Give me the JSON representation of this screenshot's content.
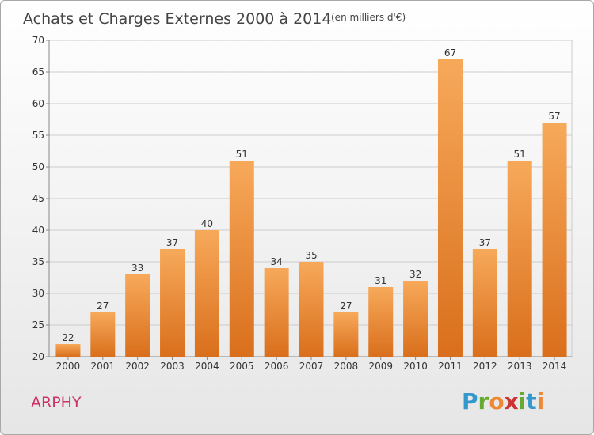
{
  "chart_data": {
    "type": "bar",
    "title": "Achats et Charges Externes 2000 à 2014",
    "subtitle": "(en milliers d'€)",
    "categories": [
      "2000",
      "2001",
      "2002",
      "2003",
      "2004",
      "2005",
      "2006",
      "2007",
      "2008",
      "2009",
      "2010",
      "2011",
      "2012",
      "2013",
      "2014"
    ],
    "values": [
      22,
      27,
      33,
      37,
      40,
      51,
      34,
      35,
      27,
      31,
      32,
      67,
      37,
      51,
      57
    ],
    "ylim": [
      20,
      70
    ],
    "yticks": [
      20,
      25,
      30,
      35,
      40,
      45,
      50,
      55,
      60,
      65,
      70
    ],
    "grid": true,
    "bar_color": "#f0913a"
  },
  "footer": {
    "commune": "ARPHY",
    "logo_letters": [
      "P",
      "r",
      "o",
      "x",
      "i",
      "t",
      "i"
    ],
    "logo_colors": [
      "#3399cc",
      "#66aa33",
      "#ee8833",
      "#cc3333",
      "#66aa33",
      "#3399cc",
      "#ee8833"
    ]
  }
}
